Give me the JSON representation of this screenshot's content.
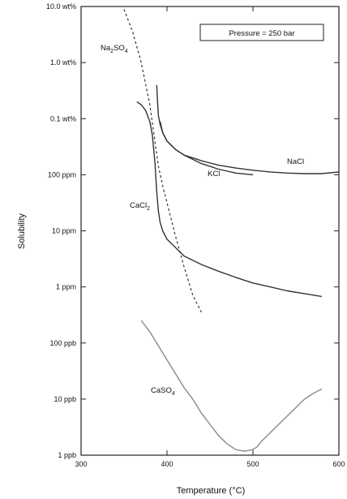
{
  "chart_data": {
    "type": "line",
    "title": "",
    "xlabel": "Temperature (°C)",
    "ylabel": "Solubility",
    "xlim": [
      300,
      600
    ],
    "ylim_log": [
      -9,
      -1
    ],
    "y_scale": "log",
    "x_ticks": [
      {
        "value": 300,
        "label": "300"
      },
      {
        "value": 400,
        "label": "400"
      },
      {
        "value": 500,
        "label": "500"
      },
      {
        "value": 600,
        "label": "600"
      }
    ],
    "y_ticks": [
      {
        "value": -1,
        "label": "10.0 wt%"
      },
      {
        "value": -2,
        "label": "1.0 wt%"
      },
      {
        "value": -3,
        "label": "0.1 wt%"
      },
      {
        "value": -4,
        "label": "100 ppm"
      },
      {
        "value": -5,
        "label": "10 ppm"
      },
      {
        "value": -6,
        "label": "1 ppm"
      },
      {
        "value": -7,
        "label": "100 ppb"
      },
      {
        "value": -8,
        "label": "10 ppb"
      },
      {
        "value": -9,
        "label": "1 ppb"
      }
    ],
    "annotation": "Pressure = 250 bar",
    "series": [
      {
        "name": "Na2SO4",
        "label_main": "Na",
        "label_sub1": "2",
        "label_mid": "SO",
        "label_sub2": "4",
        "style": "dashed",
        "color": "#333333",
        "x": [
          350,
          360,
          370,
          380,
          385,
          390,
          395,
          400,
          410,
          420,
          430,
          440
        ],
        "y": [
          -1.05,
          -1.45,
          -2.0,
          -2.75,
          -3.3,
          -3.85,
          -4.2,
          -4.5,
          -5.1,
          -5.65,
          -6.15,
          -6.45
        ]
      },
      {
        "name": "NaCl",
        "style": "solid",
        "color": "#333333",
        "x": [
          388,
          389,
          390,
          392,
          395,
          400,
          410,
          420,
          440,
          460,
          480,
          500,
          520,
          540,
          560,
          580,
          600
        ],
        "y": [
          -2.4,
          -2.7,
          -2.95,
          -3.1,
          -3.25,
          -3.4,
          -3.55,
          -3.65,
          -3.75,
          -3.83,
          -3.88,
          -3.92,
          -3.95,
          -3.97,
          -3.98,
          -3.98,
          -3.95
        ]
      },
      {
        "name": "KCl",
        "style": "solid",
        "color": "#333333",
        "x": [
          392,
          395,
          400,
          410,
          420,
          440,
          460,
          480,
          500
        ],
        "y": [
          -3.05,
          -3.25,
          -3.4,
          -3.55,
          -3.65,
          -3.8,
          -3.9,
          -3.97,
          -4.0
        ]
      },
      {
        "name": "CaCl2",
        "label_main": "CaCl",
        "label_sub1": "2",
        "style": "solid",
        "color": "#333333",
        "x": [
          365,
          370,
          375,
          380,
          383,
          386,
          388,
          390,
          392,
          395,
          400,
          410,
          420,
          440,
          460,
          480,
          500,
          520,
          540,
          560,
          580
        ],
        "y": [
          -2.7,
          -2.75,
          -2.85,
          -3.05,
          -3.3,
          -3.8,
          -4.3,
          -4.65,
          -4.85,
          -5.0,
          -5.15,
          -5.3,
          -5.45,
          -5.6,
          -5.72,
          -5.83,
          -5.93,
          -6.0,
          -6.07,
          -6.12,
          -6.17
        ]
      },
      {
        "name": "CaSO4",
        "label_main": "CaSO",
        "label_sub1": "4",
        "style": "solid",
        "color": "#8a8a8a",
        "x": [
          370,
          380,
          390,
          400,
          410,
          420,
          430,
          440,
          450,
          460,
          470,
          480,
          490,
          500,
          505,
          510,
          520,
          530,
          540,
          550,
          560,
          570,
          580
        ],
        "y": [
          -6.6,
          -6.8,
          -7.05,
          -7.3,
          -7.55,
          -7.8,
          -8.0,
          -8.25,
          -8.45,
          -8.65,
          -8.8,
          -8.9,
          -8.93,
          -8.9,
          -8.85,
          -8.75,
          -8.6,
          -8.45,
          -8.3,
          -8.15,
          -8.0,
          -7.9,
          -7.82
        ]
      }
    ]
  }
}
